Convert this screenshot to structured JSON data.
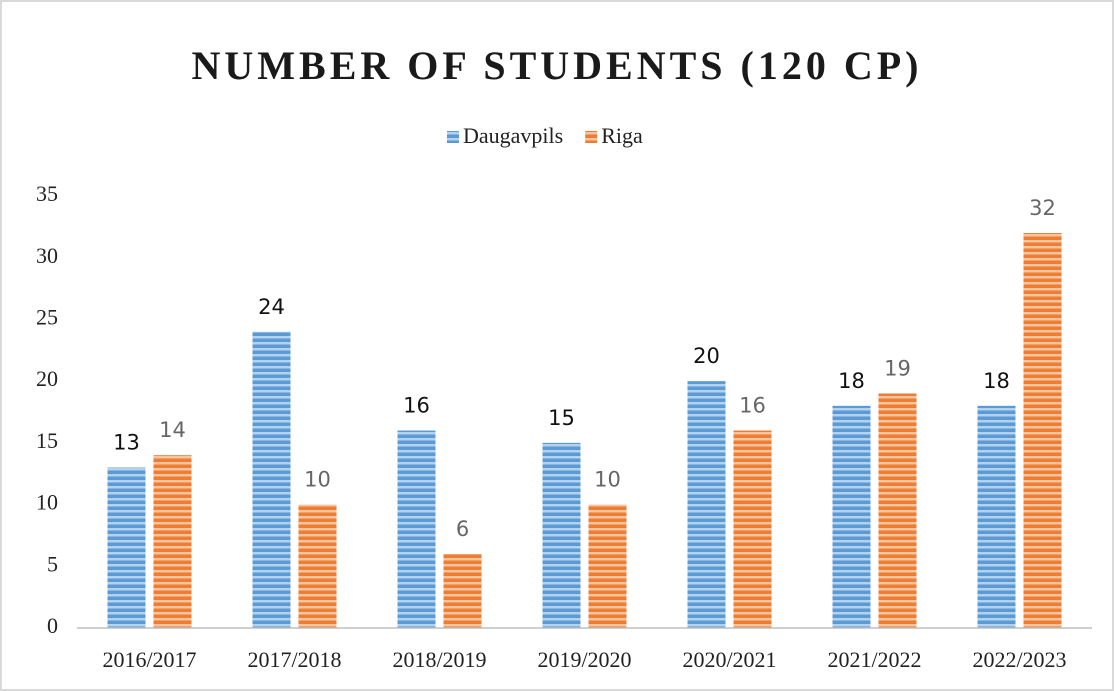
{
  "chart_data": {
    "type": "bar",
    "title": "NUMBER OF STUDENTS (120 CP)",
    "categories": [
      "2016/2017",
      "2017/2018",
      "2018/2019",
      "2019/2020",
      "2020/2021",
      "2021/2022",
      "2022/2023"
    ],
    "series": [
      {
        "name": "Daugavpils",
        "color": "#5b9bd5",
        "values": [
          13,
          24,
          16,
          15,
          20,
          18,
          18
        ]
      },
      {
        "name": "Riga",
        "color": "#ed7d31",
        "values": [
          14,
          10,
          6,
          10,
          16,
          19,
          32
        ]
      }
    ],
    "ylim": [
      0,
      35
    ],
    "yticks": [
      0,
      5,
      10,
      15,
      20,
      25,
      30,
      35
    ],
    "grid": false,
    "legend": "top"
  }
}
